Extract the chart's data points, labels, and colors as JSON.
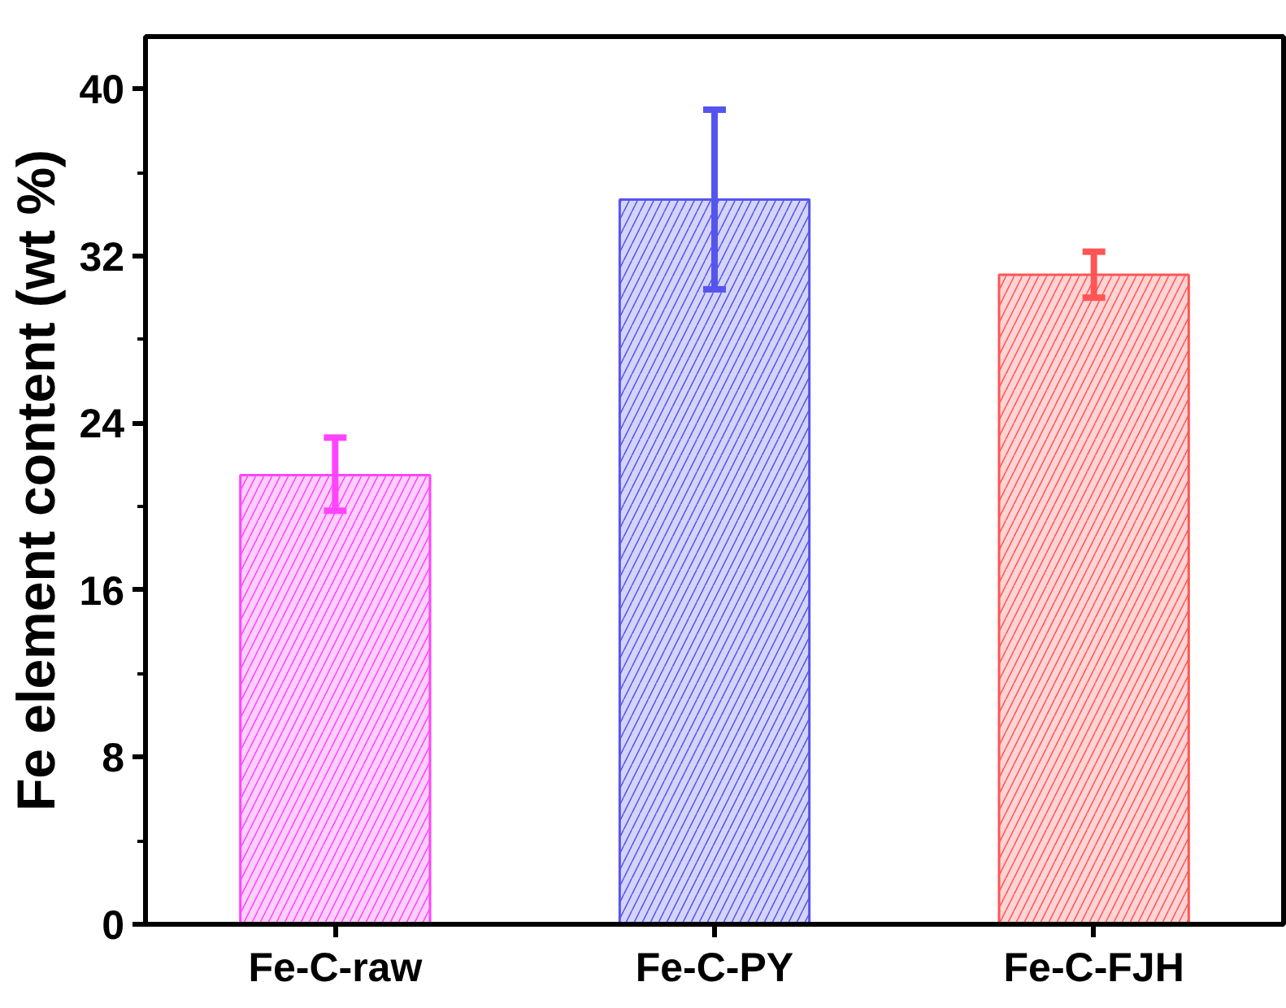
{
  "chart_data": {
    "type": "bar",
    "ylabel": "Fe element content (wt %)",
    "categories": [
      "Fe-C-raw",
      "Fe-C-PY",
      "Fe-C-FJH"
    ],
    "values": [
      21.5,
      34.7,
      31.1
    ],
    "colors": [
      "#ff44ff",
      "#5555ee",
      "#ff5555"
    ],
    "errors": [
      [
        19.8,
        23.3
      ],
      [
        30.4,
        39.0
      ],
      [
        30.0,
        32.2
      ]
    ],
    "ylim": [
      0,
      42.5
    ],
    "yticks": [
      0,
      8,
      16,
      24,
      32,
      40
    ],
    "grid": false
  }
}
